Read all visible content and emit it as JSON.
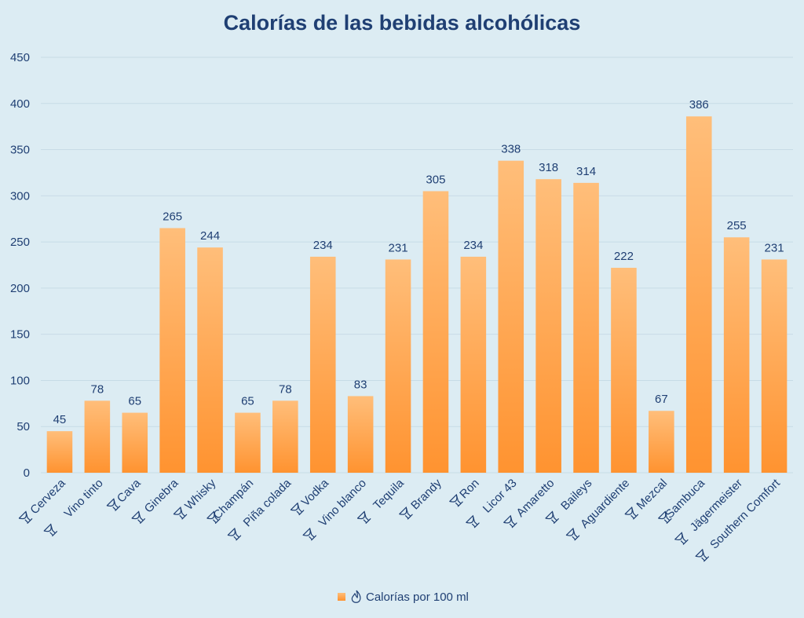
{
  "chart_data": {
    "type": "bar",
    "title": "Calorías de las bebidas alcohólicas",
    "categories": [
      "Cerveza",
      "Vino tinto",
      "Cava",
      "Ginebra",
      "Whisky",
      "Champán",
      "Piña colada",
      "Vodka",
      "Vino blanco",
      "Tequila",
      "Brandy",
      "Ron",
      "Licor 43",
      "Amaretto",
      "Baileys",
      "Aguardiente",
      "Mezcal",
      "Sambuca",
      "Jägermeister",
      "Southern Comfort"
    ],
    "category_icons": [
      "beer-mug-icon",
      "wine-glass-icon",
      "cava-glasses-icon",
      "gin-glass-icon",
      "whisky-glass-icon",
      "champagne-bottle-icon",
      "pina-colada-glass-icon",
      "vodka-glass-icon",
      "white-wine-glass-icon",
      "tequila-glass-icon",
      "brandy-glass-icon",
      "rum-glass-icon",
      "liqueur-glass-icon",
      "amaretto-glass-icon",
      "baileys-glass-icon",
      "aguardiente-glass-icon",
      "mezcal-glass-icon",
      "sambuca-glass-icon",
      "jagermeister-glass-icon",
      "southern-comfort-glass-icon"
    ],
    "series": [
      {
        "name": "Calorías por 100 ml",
        "values": [
          45,
          78,
          65,
          265,
          244,
          65,
          78,
          234,
          83,
          231,
          305,
          234,
          338,
          318,
          314,
          222,
          67,
          386,
          255,
          231
        ]
      }
    ],
    "ylim": [
      0,
      450
    ],
    "yticks": [
      0,
      50,
      100,
      150,
      200,
      250,
      300,
      350,
      400,
      450
    ],
    "grid": true,
    "legend_position": "bottom",
    "legend_icon": "flame-icon",
    "colors": {
      "bar_top": "#ffbe7a",
      "bar_bottom": "#ff9330",
      "text": "#1f3f73",
      "grid": "#c7dbe6",
      "background": "#dcecf3"
    }
  }
}
